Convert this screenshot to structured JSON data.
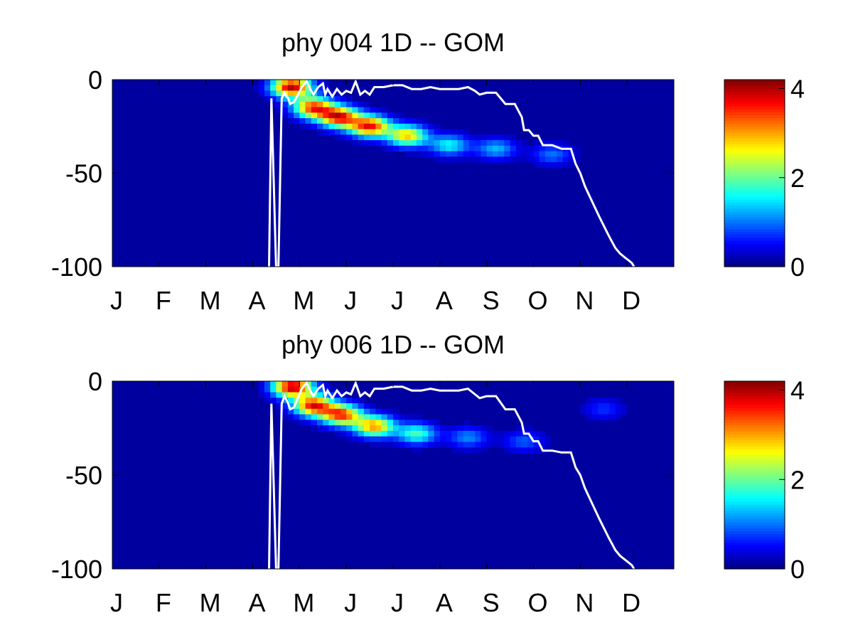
{
  "chart_data": [
    {
      "type": "heatmap",
      "title": "phy  004 1D   -- GOM",
      "xlabel": "",
      "ylabel": "",
      "x_tick_labels": [
        "J",
        "F",
        "M",
        "A",
        "M",
        "J",
        "J",
        "A",
        "S",
        "O",
        "N",
        "D"
      ],
      "x_range": [
        0,
        12
      ],
      "y_range": [
        -100,
        0
      ],
      "y_ticks": [
        0,
        -50,
        -100
      ],
      "y_tick_labels": [
        "0",
        "-50",
        "-100"
      ],
      "colorbar": {
        "range": [
          0,
          4.2
        ],
        "ticks": [
          0,
          2,
          4
        ],
        "tick_labels": [
          "0",
          "2",
          "4"
        ],
        "colormap": "jet"
      },
      "layer_line_color": "#ffffff",
      "layer_depth": {
        "x": [
          3.35,
          3.4,
          3.5,
          3.55,
          3.62,
          3.68,
          3.72,
          3.76,
          3.8,
          3.88,
          3.95,
          4.05,
          4.15,
          4.25,
          4.3,
          4.4,
          4.5,
          4.55,
          4.6,
          4.7,
          4.8,
          4.9,
          5.0,
          5.1,
          5.2,
          5.3,
          5.4,
          5.5,
          5.6,
          5.8,
          6.0,
          6.2,
          6.4,
          6.6,
          6.8,
          7.0,
          7.2,
          7.4,
          7.6,
          7.75,
          7.85,
          8.0,
          8.2,
          8.4,
          8.6,
          8.75,
          8.8,
          8.9,
          9.0,
          9.1,
          9.2,
          9.4,
          9.6,
          9.8,
          9.9,
          10.0,
          10.1,
          10.25,
          10.4,
          10.6,
          10.75,
          10.85,
          10.95,
          11.05,
          11.1,
          11.15
        ],
        "y": [
          -100,
          -10,
          -100,
          -100,
          -10,
          -7,
          -9,
          -10,
          -13,
          -12,
          -9,
          -4,
          -1,
          -6,
          -8,
          -4,
          -2,
          -8,
          -5,
          -9,
          -5,
          -8,
          -6,
          -7,
          -1,
          -8,
          -6,
          -8,
          -4,
          -4,
          -3,
          -3,
          -5,
          -5,
          -4,
          -5,
          -5,
          -5,
          -4,
          -6,
          -8,
          -7,
          -7,
          -13,
          -13,
          -20,
          -27,
          -27,
          -30,
          -30,
          -35,
          -35,
          -37,
          -37,
          -45,
          -50,
          -57,
          -65,
          -73,
          -83,
          -90,
          -93,
          -95,
          -97,
          -98,
          -100
        ]
      },
      "intensity_blobs": [
        {
          "x": 3.83,
          "y": -4,
          "peak": 4.0
        },
        {
          "x": 4.3,
          "y": -15,
          "peak": 3.4
        },
        {
          "x": 4.85,
          "y": -20,
          "peak": 3.6
        },
        {
          "x": 5.5,
          "y": -25,
          "peak": 3.6
        },
        {
          "x": 6.3,
          "y": -30,
          "peak": 2.8
        },
        {
          "x": 7.2,
          "y": -35,
          "peak": 1.5
        },
        {
          "x": 8.2,
          "y": -37,
          "peak": 1.2
        },
        {
          "x": 9.4,
          "y": -40,
          "peak": 0.9
        }
      ]
    },
    {
      "type": "heatmap",
      "title": "phy  006 1D   -- GOM",
      "xlabel": "",
      "ylabel": "",
      "x_tick_labels": [
        "J",
        "F",
        "M",
        "A",
        "M",
        "J",
        "J",
        "A",
        "S",
        "O",
        "N",
        "D"
      ],
      "x_range": [
        0,
        12
      ],
      "y_range": [
        -100,
        0
      ],
      "y_ticks": [
        0,
        -50,
        -100
      ],
      "y_tick_labels": [
        "0",
        "-50",
        "-100"
      ],
      "colorbar": {
        "range": [
          0,
          4.2
        ],
        "ticks": [
          0,
          2,
          4
        ],
        "tick_labels": [
          "0",
          "2",
          "4"
        ],
        "colormap": "jet"
      },
      "layer_line_color": "#ffffff",
      "layer_depth": {
        "x": [
          3.35,
          3.4,
          3.5,
          3.55,
          3.62,
          3.68,
          3.72,
          3.76,
          3.8,
          3.88,
          3.95,
          4.05,
          4.15,
          4.25,
          4.3,
          4.4,
          4.5,
          4.55,
          4.6,
          4.7,
          4.8,
          4.9,
          5.0,
          5.1,
          5.2,
          5.3,
          5.4,
          5.5,
          5.6,
          5.8,
          6.0,
          6.2,
          6.4,
          6.6,
          6.8,
          7.0,
          7.2,
          7.4,
          7.6,
          7.75,
          7.85,
          8.0,
          8.2,
          8.4,
          8.6,
          8.75,
          8.8,
          8.9,
          9.0,
          9.1,
          9.2,
          9.4,
          9.6,
          9.8,
          9.9,
          10.0,
          10.1,
          10.25,
          10.4,
          10.6,
          10.75,
          10.85,
          10.95,
          11.05,
          11.1,
          11.15
        ],
        "y": [
          -100,
          -12,
          -100,
          -100,
          -12,
          -8,
          -10,
          -12,
          -15,
          -14,
          -10,
          -4,
          -1,
          -6,
          -8,
          -4,
          -2,
          -8,
          -5,
          -9,
          -5,
          -8,
          -6,
          -7,
          -1,
          -8,
          -6,
          -8,
          -4,
          -4,
          -3,
          -3,
          -5,
          -5,
          -4,
          -5,
          -5,
          -5,
          -4,
          -7,
          -9,
          -8,
          -8,
          -15,
          -15,
          -22,
          -28,
          -28,
          -32,
          -32,
          -37,
          -37,
          -38,
          -38,
          -46,
          -50,
          -57,
          -65,
          -73,
          -83,
          -90,
          -93,
          -95,
          -97,
          -98,
          -100
        ]
      },
      "intensity_blobs": [
        {
          "x": 3.85,
          "y": -3,
          "peak": 4.0
        },
        {
          "x": 4.3,
          "y": -13,
          "peak": 3.6
        },
        {
          "x": 4.9,
          "y": -18,
          "peak": 3.4
        },
        {
          "x": 5.6,
          "y": -24,
          "peak": 3.0
        },
        {
          "x": 6.5,
          "y": -28,
          "peak": 1.8
        },
        {
          "x": 7.6,
          "y": -30,
          "peak": 1.0
        },
        {
          "x": 8.8,
          "y": -32,
          "peak": 0.8
        },
        {
          "x": 10.5,
          "y": -15,
          "peak": 0.6
        }
      ]
    }
  ]
}
